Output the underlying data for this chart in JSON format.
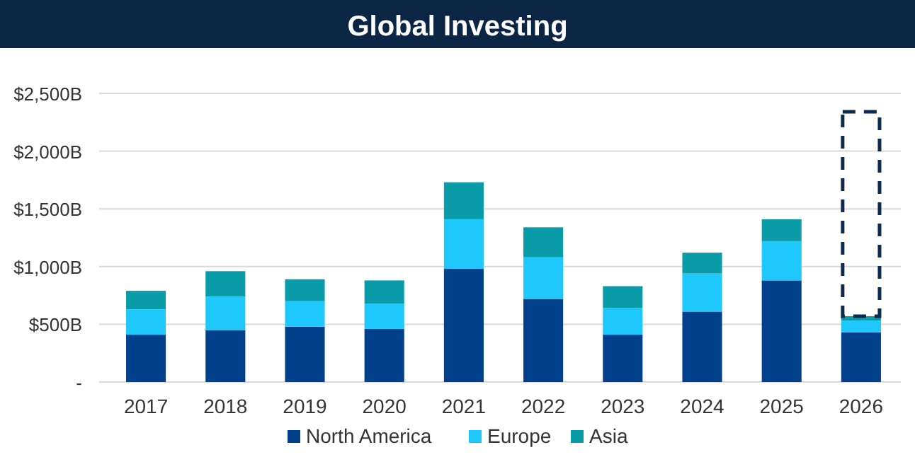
{
  "chart_data": {
    "type": "bar",
    "title": "Global Investing",
    "stacked": true,
    "categories": [
      "2017",
      "2018",
      "2019",
      "2020",
      "2021",
      "2022",
      "2023",
      "2024",
      "2025",
      "2026"
    ],
    "series": [
      {
        "name": "North America",
        "color": "#01408a",
        "values": [
          410,
          450,
          480,
          460,
          980,
          720,
          410,
          610,
          880,
          430
        ]
      },
      {
        "name": "Europe",
        "color": "#1ec8fc",
        "values": [
          220,
          290,
          220,
          220,
          430,
          360,
          230,
          330,
          340,
          100
        ]
      },
      {
        "name": "Asia",
        "color": "#0a9ca8",
        "values": [
          160,
          220,
          190,
          200,
          320,
          260,
          190,
          180,
          190,
          40
        ]
      },
      {
        "color": "#0d2a4f",
        "line_style": "dashed",
        "values": [
          null,
          null,
          null,
          null,
          null,
          null,
          null,
          null,
          null,
          1770
        ]
      }
    ],
    "ylim": [
      0,
      2500
    ],
    "yticks": [
      {
        "value": 0,
        "label": "-"
      },
      {
        "value": 500,
        "label": "$500B"
      },
      {
        "value": 1000,
        "label": "$1,000B"
      },
      {
        "value": 1500,
        "label": "$1,500B"
      },
      {
        "value": 2000,
        "label": "$2,000B"
      },
      {
        "value": 2500,
        "label": "$2,500B"
      }
    ],
    "grid": "y",
    "legend": "bottom"
  }
}
